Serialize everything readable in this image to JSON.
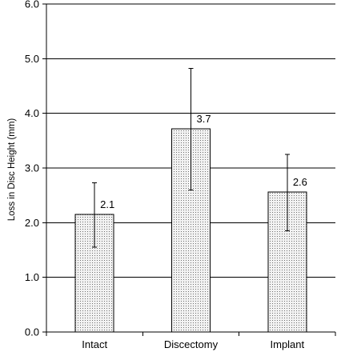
{
  "chart_data": {
    "type": "bar",
    "categories": [
      "Intact",
      "Discectomy",
      "Implant"
    ],
    "values": [
      2.15,
      3.72,
      2.56
    ],
    "data_labels": [
      "2.1",
      "3.7",
      "2.6"
    ],
    "error_low": [
      1.55,
      2.6,
      1.85
    ],
    "error_high": [
      2.73,
      4.82,
      3.25
    ],
    "title": "",
    "xlabel": "",
    "ylabel": "Loss in Disc Height (mm)",
    "ylim": [
      0,
      6
    ],
    "yticks": [
      0,
      1,
      2,
      3,
      4,
      5,
      6
    ],
    "ytick_labels": [
      "0.0",
      "1.0",
      "2.0",
      "3.0",
      "4.0",
      "5.0",
      "6.0"
    ],
    "grid": true,
    "legend": "none",
    "bar_fill": "dotted",
    "colors": {
      "bar_fill": "#f2f2f2",
      "dots": "#6e6e6e",
      "axis": "#000000",
      "grid": "#000000"
    }
  }
}
